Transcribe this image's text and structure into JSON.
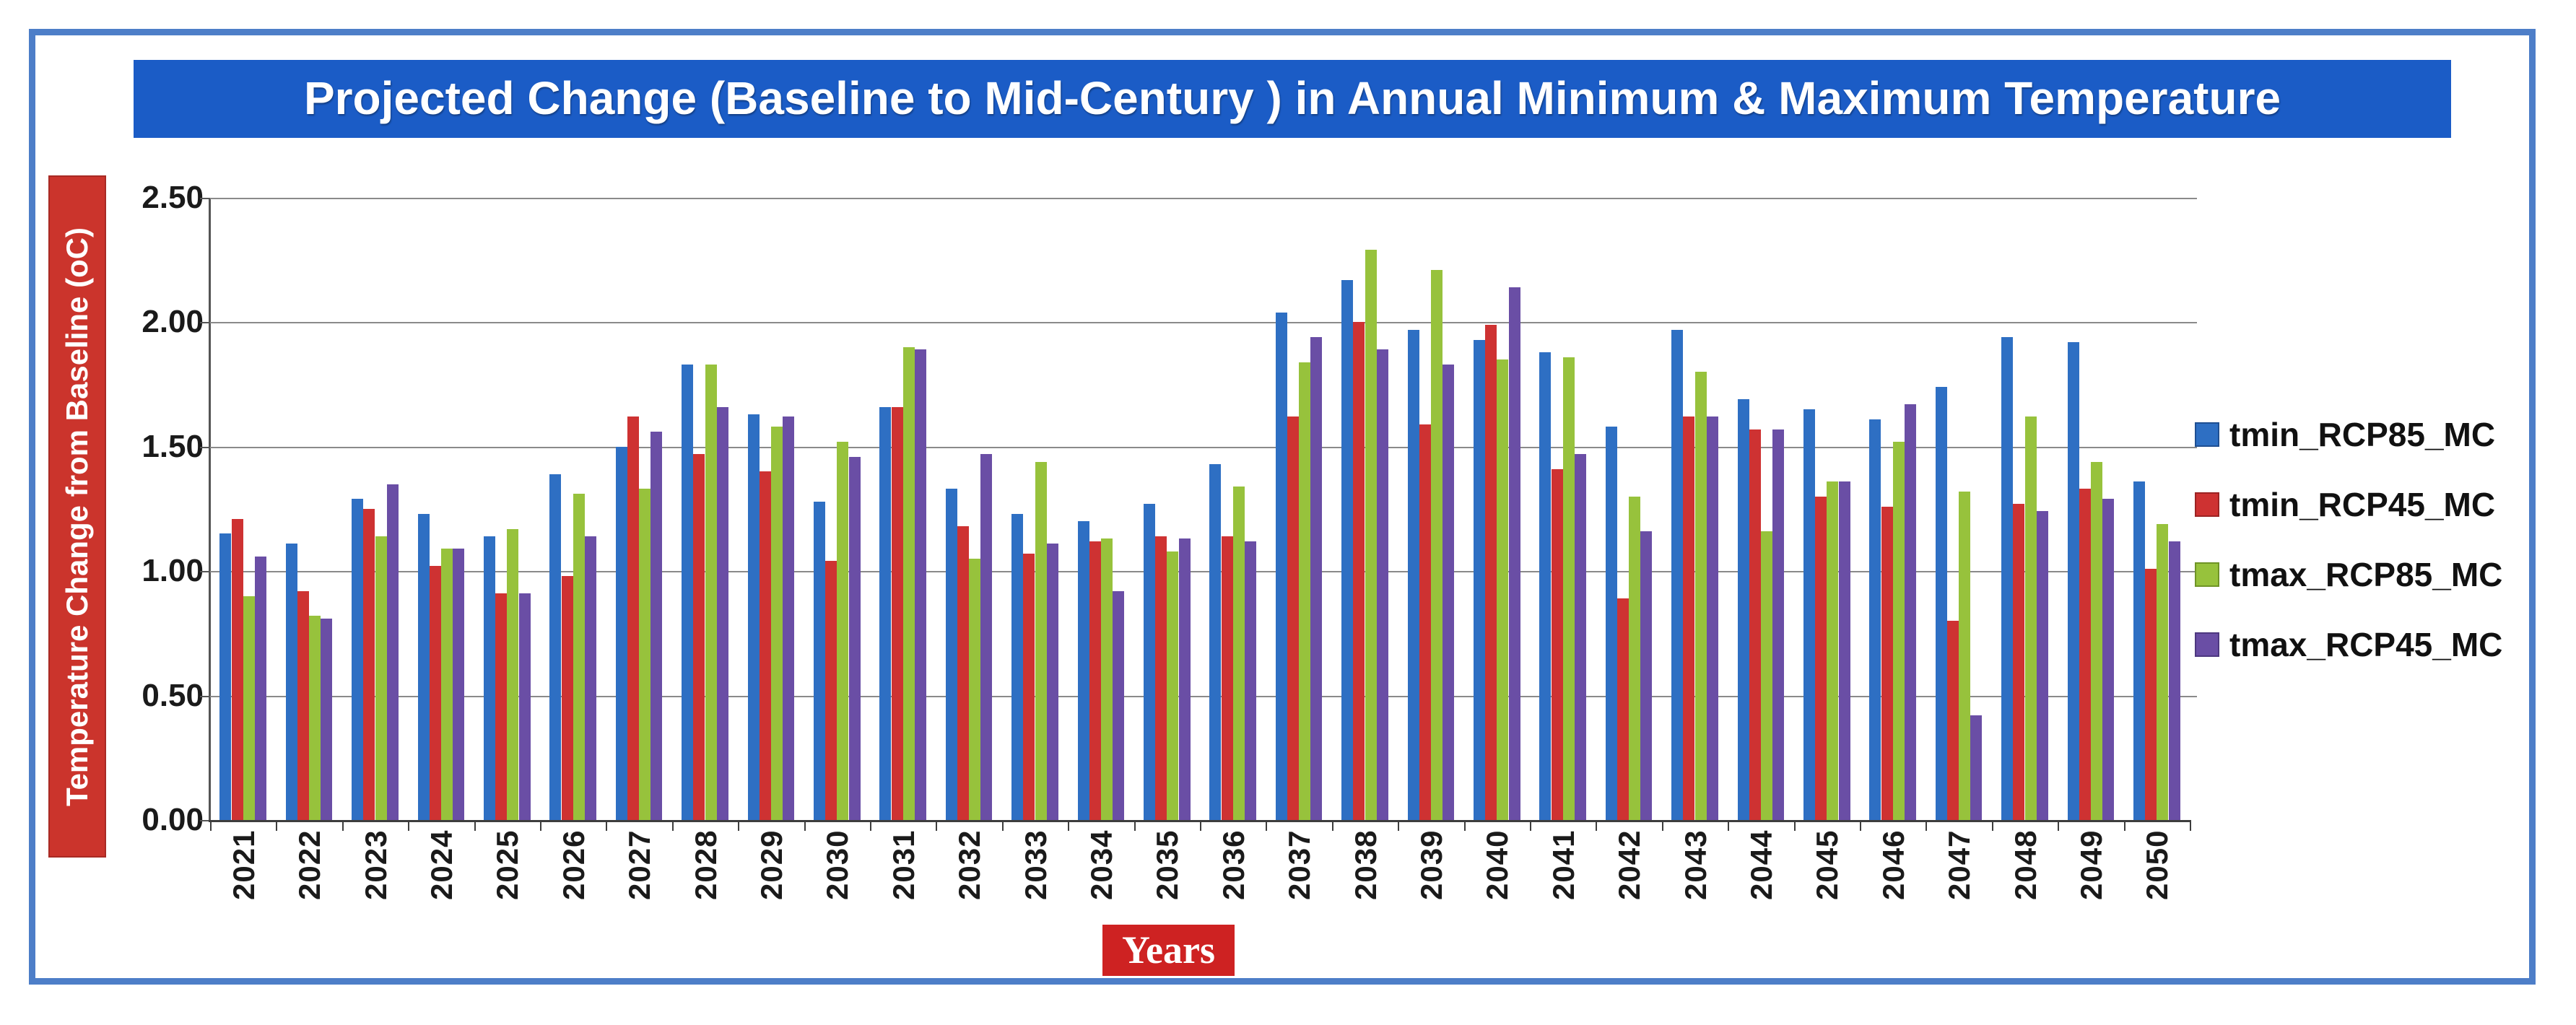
{
  "title": "Projected Change (Baseline to Mid-Century ) in Annual Minimum & Maximum Temperature",
  "y_axis": {
    "title": "Temperature Change from Baseline (oC)",
    "tick_labels": [
      "2.50",
      "2.00",
      "1.50",
      "1.00",
      "0.50",
      "0.00"
    ]
  },
  "x_axis": {
    "title": "Years"
  },
  "colors": {
    "frame_border": "#4d7ec8",
    "title_background": "#1b5cc6",
    "axis_label_background": "#cb342c",
    "years_label_background": "#ce2222",
    "gridline": "#8a8a8a"
  },
  "chart_data": {
    "type": "bar",
    "title": "Projected Change (Baseline to Mid-Century ) in Annual Minimum & Maximum Temperature",
    "xlabel": "Years",
    "ylabel": "Temperature Change from Baseline (oC)",
    "ylim": [
      0,
      2.5
    ],
    "grid_step": 0.5,
    "grid": true,
    "legend_position": "right",
    "categories": [
      "2021",
      "2022",
      "2023",
      "2024",
      "2025",
      "2026",
      "2027",
      "2028",
      "2029",
      "2030",
      "2031",
      "2032",
      "2033",
      "2034",
      "2035",
      "2036",
      "2037",
      "2038",
      "2039",
      "2040",
      "2041",
      "2042",
      "2043",
      "2044",
      "2045",
      "2046",
      "2047",
      "2048",
      "2049",
      "2050"
    ],
    "series": [
      {
        "name": "tmin_RCP85_MC",
        "color": "#2e6fc3",
        "edge": "#1f4f92",
        "values": [
          1.15,
          1.11,
          1.29,
          1.23,
          1.14,
          1.39,
          1.5,
          1.83,
          1.63,
          1.28,
          1.66,
          1.33,
          1.23,
          1.2,
          1.27,
          1.43,
          2.04,
          2.17,
          1.97,
          1.93,
          1.88,
          1.58,
          1.97,
          1.69,
          1.65,
          1.61,
          1.74,
          1.94,
          1.92,
          1.36
        ]
      },
      {
        "name": "tmin_RCP45_MC",
        "color": "#ce3232",
        "edge": "#9c2424",
        "values": [
          1.21,
          0.92,
          1.25,
          1.02,
          0.91,
          0.98,
          1.62,
          1.47,
          1.4,
          1.04,
          1.66,
          1.18,
          1.07,
          1.12,
          1.14,
          1.14,
          1.62,
          2.0,
          1.59,
          1.99,
          1.41,
          0.89,
          1.62,
          1.57,
          1.3,
          1.26,
          0.8,
          1.27,
          1.33,
          1.01
        ]
      },
      {
        "name": "tmax_RCP85_MC",
        "color": "#97c23c",
        "edge": "#6f9427",
        "values": [
          0.9,
          0.82,
          1.14,
          1.09,
          1.17,
          1.31,
          1.33,
          1.83,
          1.58,
          1.52,
          1.9,
          1.05,
          1.44,
          1.13,
          1.08,
          1.34,
          1.84,
          2.29,
          2.21,
          1.85,
          1.86,
          1.3,
          1.8,
          1.16,
          1.36,
          1.52,
          1.32,
          1.62,
          1.44,
          1.19
        ]
      },
      {
        "name": "tmax_RCP45_MC",
        "color": "#6a4ea5",
        "edge": "#4e3880",
        "values": [
          1.06,
          0.81,
          1.35,
          1.09,
          0.91,
          1.14,
          1.56,
          1.66,
          1.62,
          1.46,
          1.89,
          1.47,
          1.11,
          0.92,
          1.13,
          1.12,
          1.94,
          1.89,
          1.83,
          2.14,
          1.47,
          1.16,
          1.62,
          1.57,
          1.36,
          1.67,
          0.42,
          1.24,
          1.29,
          1.12
        ]
      }
    ]
  }
}
